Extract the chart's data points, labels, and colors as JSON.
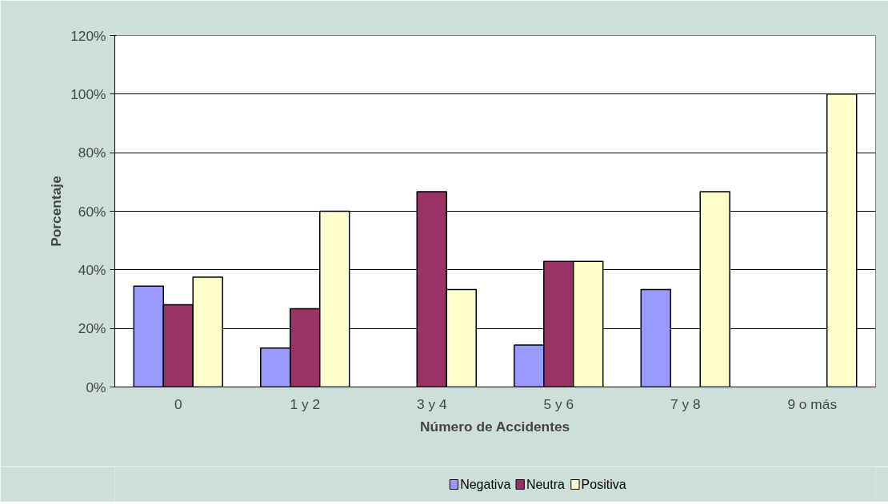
{
  "chart_data": {
    "type": "bar",
    "xlabel": "Número de Accidentes",
    "ylabel": "Porcentaje",
    "categories": [
      "0",
      "1 y 2",
      "3 y 4",
      "5 y 6",
      "7 y 8",
      "9 o más"
    ],
    "series": [
      {
        "name": "Negativa",
        "color": "#9999ff",
        "values": [
          34.4,
          13.3,
          0,
          14.3,
          33.3,
          0
        ]
      },
      {
        "name": "Neutra",
        "color": "#993366",
        "values": [
          28.1,
          26.7,
          66.7,
          42.9,
          0,
          0
        ]
      },
      {
        "name": "Positiva",
        "color": "#ffffcc",
        "values": [
          37.5,
          60,
          33.3,
          42.9,
          66.7,
          100
        ]
      }
    ],
    "ylim": [
      0,
      120
    ],
    "yticks": [
      {
        "value": 0,
        "label": "0%"
      },
      {
        "value": 20,
        "label": "20%"
      },
      {
        "value": 40,
        "label": "40%"
      },
      {
        "value": 60,
        "label": "60%"
      },
      {
        "value": 80,
        "label": "80%"
      },
      {
        "value": 100,
        "label": "100%"
      },
      {
        "value": 120,
        "label": "120%"
      }
    ],
    "grid": "y",
    "legend": "bottom"
  }
}
